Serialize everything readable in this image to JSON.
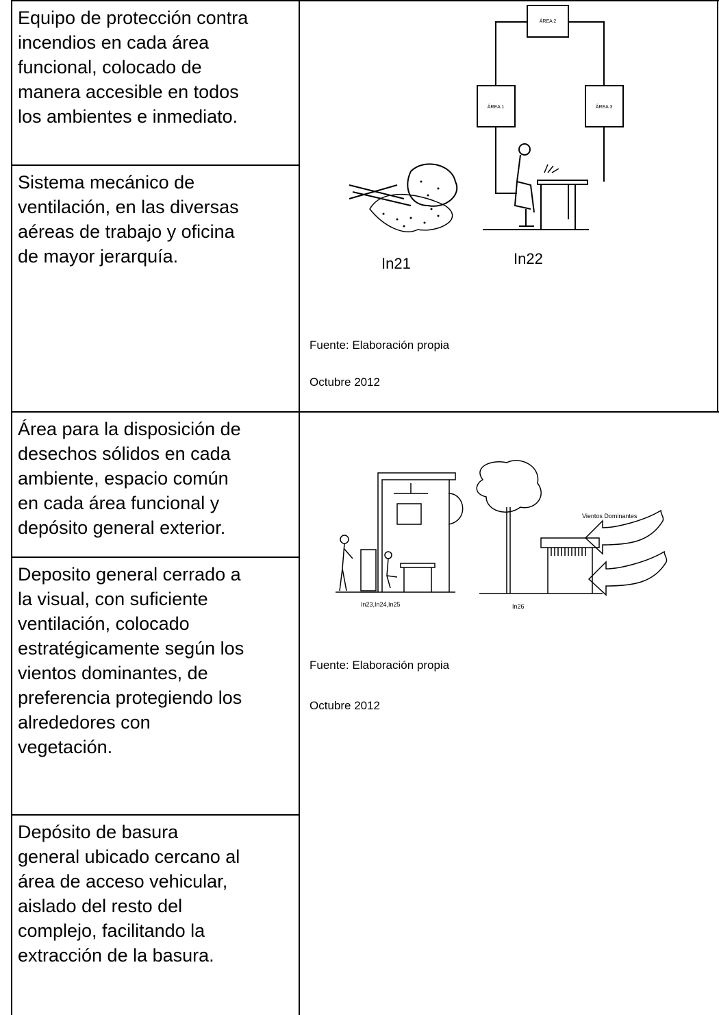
{
  "table": {
    "rows": [
      {
        "cells": [
          {
            "lines": [
              "Equipo de protección contra",
              "incendios en cada área",
              "funcional, colocado de",
              "manera accesible  en todos",
              "los ambientes e inmediato."
            ]
          },
          {
            "lines": [
              "Sistema mecánico de",
              "ventilación, en las diversas",
              "aéreas  de trabajo y oficina",
              "de mayor jerarquía."
            ]
          }
        ],
        "figure": {
          "labels": [
            "ÁREA 2",
            "ÁREA 1",
            "ÁREA 3",
            "In21",
            "In22"
          ],
          "source": "Fuente: Elaboración propia",
          "date": "Octubre 2012"
        }
      },
      {
        "cells": [
          {
            "lines": [
              "Área para la disposición de",
              "desechos sólidos en cada",
              "ambiente, espacio común",
              "en cada área funcional y",
              "depósito general exterior."
            ]
          },
          {
            "lines": [
              "Deposito general cerrado a",
              "la visual, con suficiente",
              "ventilación, colocado",
              "estratégicamente según los",
              "vientos dominantes,  de",
              "preferencia protegiendo los",
              "alrededores con",
              "vegetación."
            ]
          },
          {
            "lines": [
              "Depósito de basura",
              "general ubicado cercano al",
              "área de acceso vehicular,",
              "aislado del resto del",
              "complejo, facilitando la",
              "extracción de la basura."
            ]
          }
        ],
        "figure": {
          "labels": [
            "Vientos Dominantes",
            "In23,In24,In25",
            "In26"
          ],
          "source": "Fuente: Elaboración propia",
          "date": "Octubre 2012"
        }
      }
    ]
  }
}
